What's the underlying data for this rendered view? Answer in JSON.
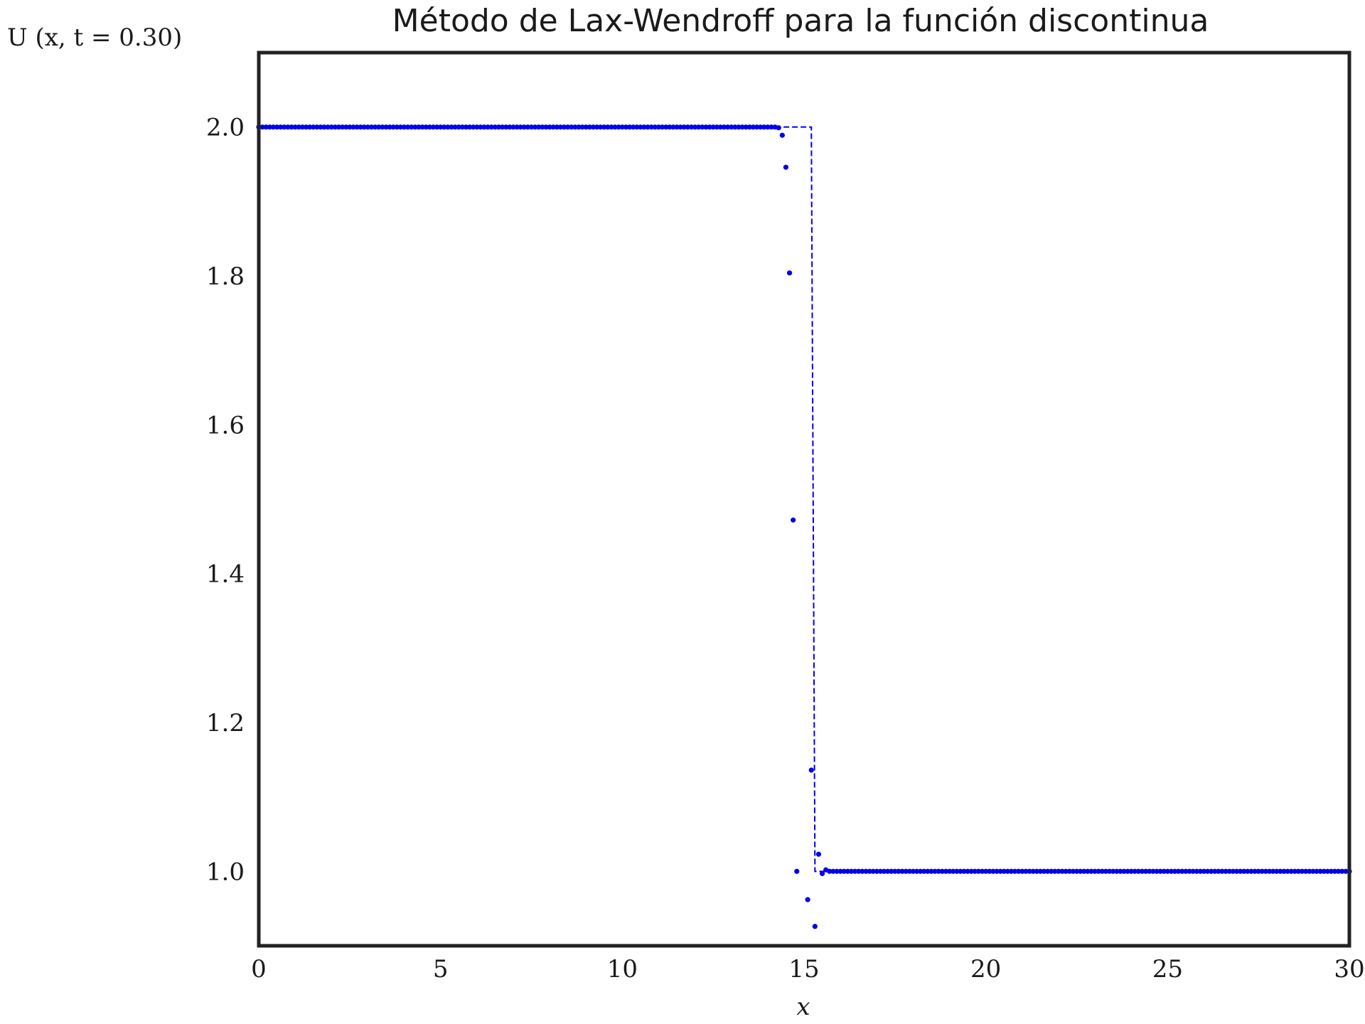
{
  "chart_data": {
    "type": "scatter",
    "title": "Método de Lax-Wendroff para la función discontinua",
    "xlabel": "x",
    "ylabel": "U (x, t = 0.30)",
    "xlim": [
      0,
      30
    ],
    "ylim": [
      0.9,
      2.1
    ],
    "x_ticks": [
      "0",
      "5",
      "10",
      "15",
      "20",
      "25",
      "30"
    ],
    "y_ticks": [
      "1.0",
      "1.2",
      "1.4",
      "1.6",
      "1.8",
      "2.0"
    ],
    "grid": false,
    "series": [
      {
        "kind": "markers",
        "color": "#0000ee",
        "step": 0.1,
        "plateau_left": {
          "x_from": 0.0,
          "x_to": 14.1,
          "y": 2.0
        },
        "transition": [
          {
            "x": 14.2,
            "y": 2.0
          },
          {
            "x": 14.3,
            "y": 1.999
          },
          {
            "x": 14.4,
            "y": 1.989
          },
          {
            "x": 14.5,
            "y": 1.946
          },
          {
            "x": 14.6,
            "y": 1.804
          },
          {
            "x": 14.7,
            "y": 1.472
          },
          {
            "x": 14.8,
            "y": 1.0
          },
          {
            "x": 15.1,
            "y": 0.962
          },
          {
            "x": 15.2,
            "y": 1.136
          },
          {
            "x": 15.3,
            "y": 0.926
          },
          {
            "x": 15.4,
            "y": 1.023
          },
          {
            "x": 15.5,
            "y": 0.997
          },
          {
            "x": 15.6,
            "y": 1.002
          }
        ],
        "plateau_right": {
          "x_from": 15.7,
          "x_to": 30.0,
          "y": 1.0
        }
      },
      {
        "kind": "dashed-line",
        "color": "#0000ee",
        "points": [
          [
            14.2,
            2.0
          ],
          [
            15.2,
            2.0
          ],
          [
            15.3,
            1.0
          ],
          [
            15.6,
            1.0
          ]
        ]
      }
    ]
  }
}
